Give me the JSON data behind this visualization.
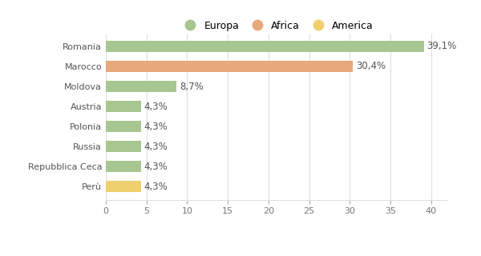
{
  "categories": [
    "Romania",
    "Marocco",
    "Moldova",
    "Austria",
    "Polonia",
    "Russia",
    "Repubblica Ceca",
    "Perù"
  ],
  "values": [
    39.1,
    30.4,
    8.7,
    4.3,
    4.3,
    4.3,
    4.3,
    4.3
  ],
  "labels": [
    "39,1%",
    "30,4%",
    "8,7%",
    "4,3%",
    "4,3%",
    "4,3%",
    "4,3%",
    "4,3%"
  ],
  "colors": [
    "#a8c68f",
    "#e8a87c",
    "#a8c68f",
    "#a8c68f",
    "#a8c68f",
    "#a8c68f",
    "#a8c68f",
    "#f0d06e"
  ],
  "legend": [
    {
      "label": "Europa",
      "color": "#a8c68f"
    },
    {
      "label": "Africa",
      "color": "#e8a87c"
    },
    {
      "label": "America",
      "color": "#f0d06e"
    }
  ],
  "xlim": [
    0,
    42
  ],
  "xticks": [
    0,
    5,
    10,
    15,
    20,
    25,
    30,
    35,
    40
  ],
  "title_fontsize": 10,
  "subtitle_fontsize": 7.5,
  "label_fontsize": 8.5,
  "tick_fontsize": 8,
  "legend_fontsize": 9,
  "background_color": "#ffffff",
  "grid_color": "#e0e0e0",
  "bar_height": 0.55
}
